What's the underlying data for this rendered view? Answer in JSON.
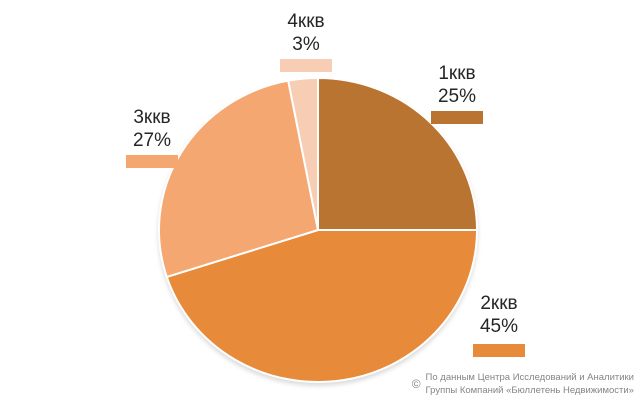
{
  "chart_data": {
    "type": "pie",
    "title": "",
    "labels": [
      "1ккв",
      "2ккв",
      "3ккв",
      "4ккв"
    ],
    "values": [
      25,
      45,
      27,
      3
    ],
    "display_values": [
      "25%",
      "45%",
      "27%",
      "3%"
    ],
    "unit": "%",
    "colors": [
      "#B97431",
      "#E78A3A",
      "#F4A771",
      "#F7CDB3"
    ],
    "start_angle_deg": 0,
    "direction": "clockwise",
    "legend_position": "callout-labels-around-pie",
    "slice_border_color": "#FFFFFF",
    "label_text_color": "#262626"
  },
  "footer": {
    "copyright_symbol": "©",
    "line1": "По данным Центра Исследований и Аналитики",
    "line2": "Группы Компаний «Бюллетень Недвижимости»",
    "text_color": "#858585"
  }
}
